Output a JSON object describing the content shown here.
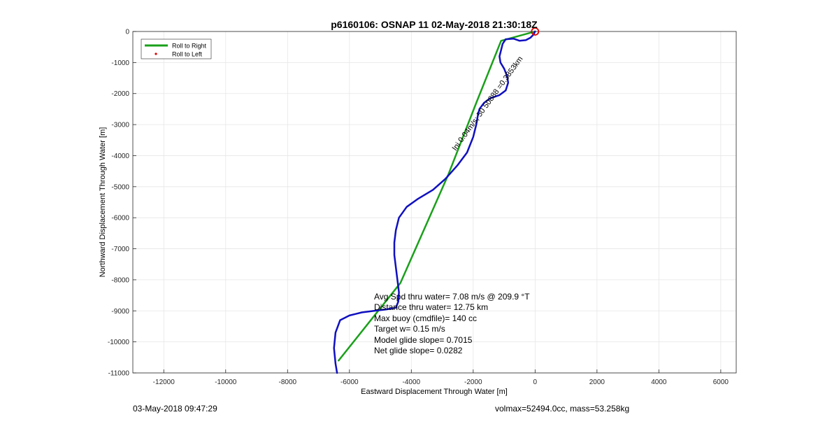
{
  "chart_data": {
    "type": "line",
    "title": "p6160106: OSNAP 11 02-May-2018 21:30:18Z",
    "xlabel": "Eastward Displacement Through Water [m]",
    "ylabel": "Northward Displacement Through Water [m]",
    "xlim": [
      -13000,
      6500
    ],
    "ylim": [
      -11000,
      0
    ],
    "xticks": [
      -12000,
      -10000,
      -8000,
      -6000,
      -4000,
      -2000,
      0,
      2000,
      4000,
      6000
    ],
    "yticks": [
      0,
      -1000,
      -2000,
      -3000,
      -4000,
      -5000,
      -6000,
      -7000,
      -8000,
      -9000,
      -10000,
      -11000
    ],
    "grid": true,
    "legend_position": "top-left",
    "series": [
      {
        "name": "Roll to Right",
        "color": "#1aa01a",
        "x": [
          0,
          -1100,
          -1900,
          -2800,
          -4350,
          -6350
        ],
        "y": [
          0,
          -300,
          -2300,
          -4600,
          -8100,
          -10600
        ]
      },
      {
        "name": "Roll to Left",
        "color": "#dd0000",
        "x": [],
        "y": []
      },
      {
        "name": "",
        "color": "#1010c0",
        "x": [
          0,
          -50,
          -150,
          -300,
          -500,
          -700,
          -950,
          -1050,
          -1100,
          -1150,
          -1120,
          -1000,
          -900,
          -870,
          -950,
          -1150,
          -1450,
          -1650,
          -1800,
          -1850,
          -1900,
          -2000,
          -2200,
          -2500,
          -2900,
          -3300,
          -3800,
          -4150,
          -4400,
          -4500,
          -4550,
          -4550,
          -4500,
          -4450,
          -4400,
          -4420,
          -4500,
          -4800,
          -5200,
          -5600,
          -6000,
          -6300,
          -6450,
          -6500,
          -6450,
          -6400
        ],
        "y": [
          0,
          -100,
          -200,
          -280,
          -300,
          -230,
          -250,
          -400,
          -600,
          -800,
          -1000,
          -1200,
          -1450,
          -1650,
          -1900,
          -2050,
          -2150,
          -2300,
          -2500,
          -2700,
          -3000,
          -3400,
          -3900,
          -4300,
          -4750,
          -5100,
          -5400,
          -5650,
          -6000,
          -6400,
          -6800,
          -7200,
          -7600,
          -8000,
          -8400,
          -8700,
          -8900,
          -8950,
          -9000,
          -9050,
          -9150,
          -9300,
          -9700,
          -10200,
          -10700,
          -11000
        ]
      }
    ],
    "annotations": {
      "rotated_label": "Ini 0.04m/s; 50 50888 =0.3853km",
      "start_marker_color": "#dd0000",
      "stats": [
        "Avg Spd thru water=  7.08 m/s @ 209.9 °T",
        "Distance thru water= 12.75 km",
        "Max buoy (cmdfile)= 140 cc",
        "Target w= 0.15 m/s",
        "Model glide slope= 0.7015",
        "Net glide slope= 0.0282"
      ]
    }
  },
  "footer": {
    "timestamp": "03-May-2018 09:47:29",
    "volmass": "volmax=52494.0cc, mass=53.258kg"
  }
}
